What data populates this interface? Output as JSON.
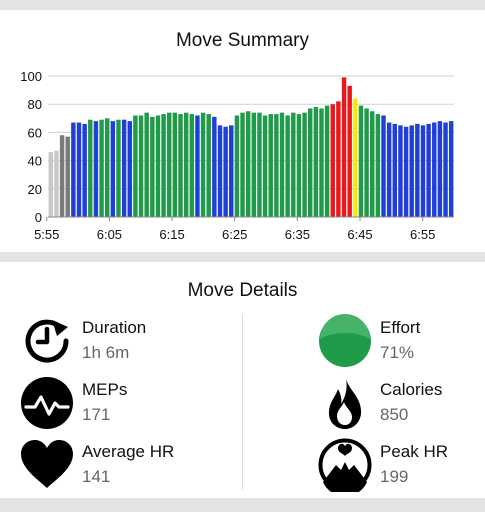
{
  "summary": {
    "title": "Move Summary"
  },
  "details": {
    "title": "Move Details",
    "metrics": [
      {
        "icon": "stopwatch-icon",
        "label": "Duration",
        "value": "1h 6m"
      },
      {
        "icon": "effort-circle-icon",
        "label": "Effort",
        "value": "71%"
      },
      {
        "icon": "heart-rate-wave-icon",
        "label": "MEPs",
        "value": "171"
      },
      {
        "icon": "flame-icon",
        "label": "Calories",
        "value": "850"
      },
      {
        "icon": "heart-icon",
        "label": "Average HR",
        "value": "141"
      },
      {
        "icon": "mountain-peak-icon",
        "label": "Peak HR",
        "value": "199"
      }
    ]
  },
  "colors": {
    "grey": "#c8c8c8",
    "dark_grey": "#7a7a7a",
    "blue": "#1f3fd6",
    "green": "#1f9b4a",
    "yellow": "#f5ea10",
    "red": "#e8191e",
    "effort": "#1f9b4a"
  },
  "chart_data": {
    "type": "bar",
    "xlim": [
      5.92,
      7.0
    ],
    "ylim": [
      0,
      100
    ],
    "yticks": [
      "0",
      "20",
      "40",
      "60",
      "80",
      "100"
    ],
    "xticks": [
      "5:55",
      "6:05",
      "6:15",
      "6:25",
      "6:35",
      "6:45",
      "6:55"
    ],
    "grid": true,
    "values": [
      46,
      47,
      58,
      57,
      67,
      67,
      66,
      69,
      68,
      69,
      70,
      68,
      69,
      69,
      68,
      72,
      72,
      74,
      71,
      72,
      73,
      74,
      74,
      73,
      74,
      73,
      72,
      74,
      73,
      71,
      65,
      64,
      65,
      72,
      74,
      75,
      74,
      74,
      72,
      73,
      73,
      74,
      72,
      74,
      73,
      74,
      77,
      78,
      77,
      79,
      80,
      82,
      99,
      93,
      84,
      79,
      77,
      75,
      73,
      72,
      67,
      66,
      65,
      64,
      65,
      66,
      65,
      66,
      67,
      68,
      67,
      68
    ],
    "bar_colors": [
      "grey",
      "grey",
      "dark_grey",
      "dark_grey",
      "blue",
      "blue",
      "blue",
      "green",
      "blue",
      "green",
      "green",
      "blue",
      "green",
      "blue",
      "blue",
      "green",
      "green",
      "green",
      "green",
      "green",
      "green",
      "green",
      "green",
      "green",
      "green",
      "green",
      "blue",
      "green",
      "green",
      "blue",
      "blue",
      "blue",
      "blue",
      "green",
      "green",
      "green",
      "green",
      "green",
      "green",
      "green",
      "green",
      "green",
      "green",
      "green",
      "green",
      "green",
      "green",
      "green",
      "green",
      "green",
      "red",
      "red",
      "red",
      "red",
      "yellow",
      "green",
      "green",
      "green",
      "green",
      "blue",
      "blue",
      "blue",
      "blue",
      "blue",
      "blue",
      "blue",
      "blue",
      "blue",
      "blue",
      "blue",
      "blue",
      "blue"
    ]
  }
}
